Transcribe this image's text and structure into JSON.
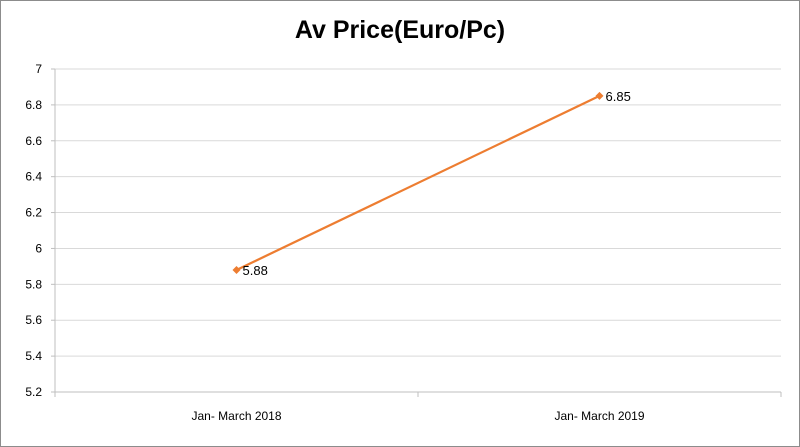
{
  "chart_data": {
    "type": "line",
    "title": "Av Price(Euro/Pc)",
    "categories": [
      "Jan- March 2018",
      "Jan- March 2019"
    ],
    "series": [
      {
        "values": [
          5.88,
          6.85
        ],
        "data_labels": [
          "5.88",
          "6.85"
        ],
        "color": "#ED7D31",
        "marker": "diamond"
      }
    ],
    "ylim": [
      5.2,
      7
    ],
    "yticks": [
      "7",
      "6.8",
      "6.6",
      "6.4",
      "6.2",
      "6",
      "5.8",
      "5.6",
      "5.4",
      "5.2"
    ],
    "ytick_values": [
      7,
      6.8,
      6.6,
      6.4,
      6.2,
      6,
      5.8,
      5.6,
      5.4,
      5.2
    ],
    "grid": true,
    "grid_color": "#d9d9d9",
    "legend": "none"
  }
}
